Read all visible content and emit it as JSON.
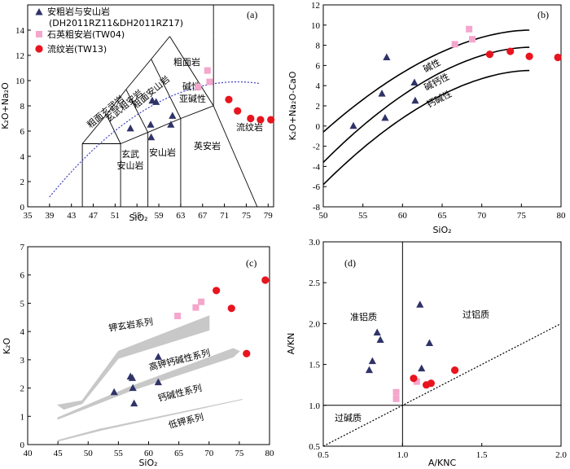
{
  "colors": {
    "triangle": "#2f3368",
    "square": "#f4a6cc",
    "circle": "#e8141e",
    "dotted": "#3b3fbf",
    "band": "#c8c8c8"
  },
  "legend": [
    {
      "marker": "triangle",
      "label": "安粗岩与安山岩",
      "label2": "(DH2011RZ11&DH2011RZ17)"
    },
    {
      "marker": "square",
      "label": "石英粗安岩(TW04)"
    },
    {
      "marker": "circle",
      "label": "流纹岩(TW13)"
    }
  ],
  "chart_data": [
    {
      "panel": "(a)",
      "type": "scatter",
      "xlabel": "SiO₂",
      "ylabel": "K₂O+Na₂O",
      "xlim": [
        35,
        80
      ],
      "ylim": [
        0,
        16
      ],
      "xticks": [
        35,
        39,
        43,
        47,
        51,
        55,
        59,
        63,
        67,
        71,
        75,
        79
      ],
      "yticks": [
        0,
        2,
        4,
        6,
        8,
        10,
        12,
        14
      ],
      "regions": [
        "粗面岩",
        "碱性",
        "亚碱性",
        "流纹岩",
        "英安岩",
        "安山岩",
        "玄武安山岩",
        "粗面安山岩",
        "玄武粗安岩",
        "粗面玄武岩"
      ],
      "series": [
        {
          "marker": "triangle",
          "points": [
            [
              53.8,
              6.2
            ],
            [
              57.5,
              6.5
            ],
            [
              57.6,
              5.5
            ],
            [
              57.8,
              8.4
            ],
            [
              58.5,
              8.3
            ],
            [
              61.2,
              6.5
            ],
            [
              61.5,
              7.2
            ]
          ]
        },
        {
          "marker": "square",
          "points": [
            [
              66.2,
              9.5
            ],
            [
              67.9,
              10.8
            ],
            [
              68.3,
              9.9
            ]
          ]
        },
        {
          "marker": "circle",
          "points": [
            [
              71.8,
              8.5
            ],
            [
              73.4,
              7.6
            ],
            [
              75.8,
              7.0
            ],
            [
              77.6,
              6.9
            ],
            [
              79.5,
              6.9
            ]
          ]
        }
      ]
    },
    {
      "panel": "(b)",
      "type": "scatter",
      "xlabel": "SiO₂",
      "ylabel": "K₂O+Na₂O-CaO",
      "xlim": [
        50,
        80
      ],
      "ylim": [
        -8,
        12
      ],
      "xticks": [
        50,
        55,
        60,
        65,
        70,
        75,
        80
      ],
      "yticks": [
        -8,
        -6,
        -4,
        -2,
        0,
        2,
        4,
        6,
        8,
        10,
        12
      ],
      "curve_labels": [
        "碱性",
        "碱钙性",
        "钙碱性"
      ],
      "series": [
        {
          "marker": "triangle",
          "points": [
            [
              53.8,
              0.0
            ],
            [
              57.4,
              3.2
            ],
            [
              57.8,
              0.8
            ],
            [
              58.0,
              6.8
            ],
            [
              61.5,
              4.3
            ],
            [
              61.6,
              2.5
            ]
          ]
        },
        {
          "marker": "square",
          "points": [
            [
              66.6,
              8.1
            ],
            [
              68.4,
              9.6
            ],
            [
              68.8,
              8.6
            ]
          ]
        },
        {
          "marker": "circle",
          "points": [
            [
              71.0,
              7.1
            ],
            [
              73.6,
              7.4
            ],
            [
              76.0,
              6.9
            ],
            [
              79.6,
              6.8
            ]
          ]
        }
      ]
    },
    {
      "panel": "(c)",
      "type": "scatter",
      "xlabel": "SiO₂",
      "ylabel": "K₂O",
      "xlim": [
        40,
        80
      ],
      "ylim": [
        0,
        7
      ],
      "xticks": [
        40,
        45,
        50,
        55,
        60,
        65,
        70,
        75,
        80
      ],
      "yticks": [
        0,
        1,
        2,
        3,
        4,
        5,
        6,
        7
      ],
      "band_labels": [
        "钾玄岩系列",
        "高钾钙碱性系列",
        "钙碱性系列",
        "低钾系列"
      ],
      "series": [
        {
          "marker": "triangle",
          "points": [
            [
              54.3,
              1.85
            ],
            [
              57.0,
              2.4
            ],
            [
              57.3,
              2.35
            ],
            [
              57.4,
              2.0
            ],
            [
              57.6,
              1.45
            ],
            [
              61.6,
              3.1
            ],
            [
              61.6,
              2.2
            ]
          ]
        },
        {
          "marker": "square",
          "points": [
            [
              64.8,
              4.55
            ],
            [
              67.8,
              4.85
            ],
            [
              68.7,
              5.05
            ]
          ]
        },
        {
          "marker": "circle",
          "points": [
            [
              71.2,
              5.45
            ],
            [
              73.7,
              4.82
            ],
            [
              76.2,
              3.22
            ],
            [
              79.3,
              5.82
            ]
          ]
        }
      ]
    },
    {
      "panel": "(d)",
      "type": "scatter",
      "xlabel": "A/KNC",
      "ylabel": "A/KN",
      "xlim": [
        0.5,
        2.0
      ],
      "ylim": [
        0.5,
        3.0
      ],
      "xticks": [
        "0.5",
        "1.0",
        "1.5",
        "2.0"
      ],
      "yticks": [
        "0.5",
        "1.0",
        "1.5",
        "2.0",
        "2.5",
        "3.0"
      ],
      "region_labels": [
        "准铝质",
        "过铝质",
        "过碱质"
      ],
      "series": [
        {
          "marker": "triangle",
          "points": [
            [
              0.79,
              1.43
            ],
            [
              0.81,
              1.54
            ],
            [
              0.84,
              1.89
            ],
            [
              0.86,
              1.8
            ],
            [
              1.11,
              2.23
            ],
            [
              1.12,
              1.45
            ],
            [
              1.17,
              1.76
            ]
          ]
        },
        {
          "marker": "square",
          "points": [
            [
              0.96,
              1.16
            ],
            [
              0.96,
              1.08
            ],
            [
              1.09,
              1.29
            ]
          ]
        },
        {
          "marker": "circle",
          "points": [
            [
              1.07,
              1.33
            ],
            [
              1.15,
              1.25
            ],
            [
              1.18,
              1.27
            ],
            [
              1.33,
              1.43
            ]
          ]
        }
      ]
    }
  ]
}
